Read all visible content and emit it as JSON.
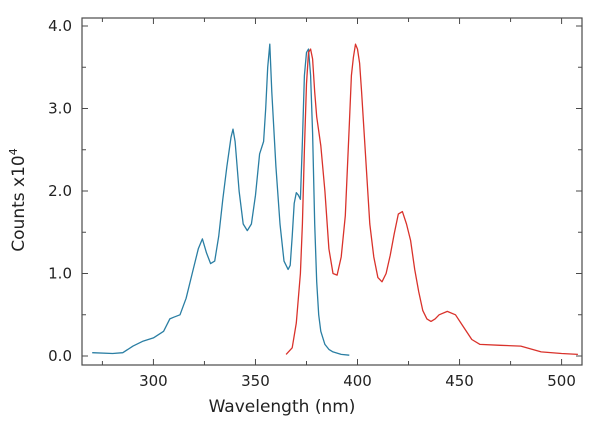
{
  "chart_data": {
    "type": "line",
    "title": "",
    "xlabel": "Wavelength (nm)",
    "ylabel": "Counts x10",
    "ylabel_superscript": "4",
    "xlim": [
      265,
      510
    ],
    "ylim": [
      0.0,
      4.0
    ],
    "xticks": [
      300,
      350,
      400,
      450,
      500
    ],
    "xtick_labels": [
      "300",
      "350",
      "400",
      "450",
      "500"
    ],
    "yticks": [
      0.0,
      1.0,
      2.0,
      3.0,
      4.0
    ],
    "ytick_labels": [
      "0.0",
      "1.0",
      "2.0",
      "3.0",
      "4.0"
    ],
    "grid": false,
    "legend": "none",
    "series": [
      {
        "color": "#2a7ea3",
        "x": [
          270,
          280,
          285,
          290,
          295,
          300,
          305,
          308,
          310,
          313,
          316,
          319,
          322,
          324,
          326,
          328,
          330,
          332,
          334,
          336,
          338,
          339,
          340,
          342,
          344,
          346,
          348,
          350,
          352,
          354,
          355,
          356,
          357,
          358,
          360,
          362,
          364,
          366,
          367,
          368,
          369,
          370,
          371,
          372,
          373,
          374,
          375,
          376,
          377,
          378,
          379,
          380,
          381,
          382,
          384,
          386,
          388,
          392,
          396
        ],
        "y": [
          0.04,
          0.03,
          0.04,
          0.12,
          0.18,
          0.22,
          0.3,
          0.45,
          0.47,
          0.5,
          0.7,
          1.0,
          1.3,
          1.42,
          1.25,
          1.12,
          1.15,
          1.45,
          1.9,
          2.3,
          2.65,
          2.75,
          2.6,
          2.0,
          1.6,
          1.52,
          1.6,
          1.95,
          2.45,
          2.6,
          3.0,
          3.5,
          3.78,
          3.2,
          2.3,
          1.6,
          1.15,
          1.05,
          1.1,
          1.45,
          1.85,
          1.98,
          1.95,
          1.9,
          2.6,
          3.4,
          3.68,
          3.72,
          3.4,
          2.7,
          1.6,
          0.9,
          0.5,
          0.3,
          0.14,
          0.08,
          0.05,
          0.02,
          0.01
        ]
      },
      {
        "color": "#d9322b",
        "x": [
          365,
          368,
          370,
          372,
          373,
          374,
          375,
          376,
          377,
          378,
          379,
          380,
          382,
          384,
          386,
          388,
          390,
          392,
          394,
          396,
          397,
          398,
          399,
          400,
          401,
          402,
          404,
          406,
          408,
          410,
          412,
          414,
          416,
          418,
          420,
          422,
          424,
          426,
          428,
          430,
          432,
          434,
          436,
          438,
          440,
          444,
          448,
          452,
          456,
          460,
          470,
          480,
          490,
          500,
          508
        ],
        "y": [
          0.02,
          0.1,
          0.4,
          1.0,
          1.6,
          2.5,
          3.3,
          3.68,
          3.72,
          3.6,
          3.2,
          2.9,
          2.55,
          2.0,
          1.3,
          1.0,
          0.98,
          1.2,
          1.7,
          2.8,
          3.4,
          3.62,
          3.78,
          3.72,
          3.55,
          3.2,
          2.4,
          1.6,
          1.2,
          0.95,
          0.9,
          1.0,
          1.22,
          1.48,
          1.72,
          1.75,
          1.6,
          1.4,
          1.05,
          0.78,
          0.55,
          0.45,
          0.42,
          0.45,
          0.5,
          0.54,
          0.5,
          0.35,
          0.2,
          0.14,
          0.13,
          0.12,
          0.05,
          0.03,
          0.02
        ]
      }
    ]
  }
}
